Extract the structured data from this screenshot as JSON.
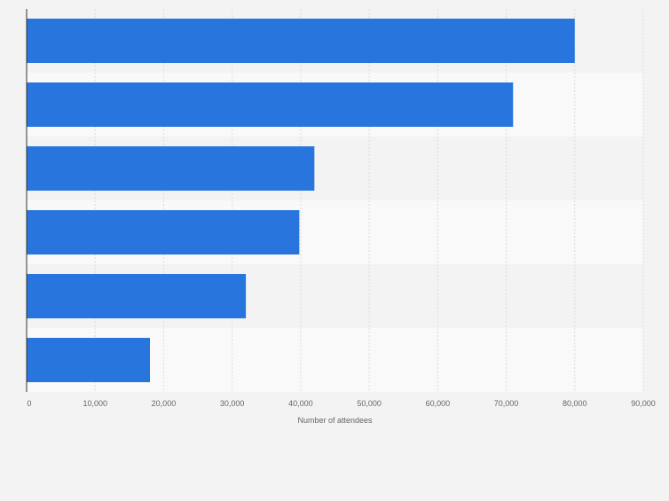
{
  "chart_data": {
    "type": "bar",
    "orientation": "horizontal",
    "categories": [
      "",
      "",
      "",
      "",
      "",
      ""
    ],
    "values": [
      80000,
      71000,
      42000,
      39800,
      32000,
      18000
    ],
    "title": "",
    "xlabel": "Number of attendees",
    "ylabel": "",
    "xlim": [
      0,
      90000
    ],
    "xticks": [
      0,
      10000,
      20000,
      30000,
      40000,
      50000,
      60000,
      70000,
      80000,
      90000
    ],
    "xtick_labels": [
      "0",
      "10,000",
      "20,000",
      "30,000",
      "40,000",
      "50,000",
      "60,000",
      "70,000",
      "80,000",
      "90,000"
    ],
    "grid": "vertical dashed",
    "legend": "none",
    "colors": {
      "bar": "#2876dd",
      "band_a": "#f3f3f3",
      "band_b": "#f9f9f9",
      "grid": "#dcdcdc",
      "axis": "#333333",
      "text": "#666666"
    }
  }
}
